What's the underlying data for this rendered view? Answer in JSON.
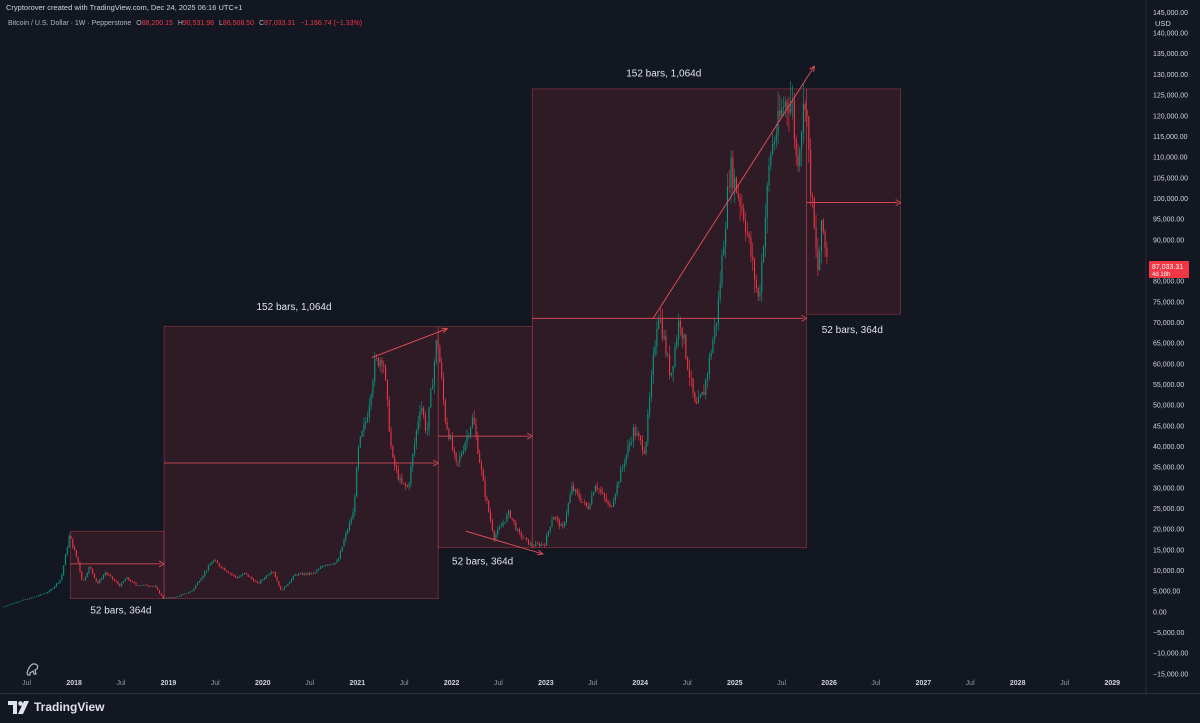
{
  "header": {
    "credit": "Cryptorover created with TradingView.com, Dec 24, 2025 06:16 UTC+1",
    "symbol": "Bitcoin / U.S. Dollar · 1W · Pepperstone",
    "ohlc": {
      "o_label": "O",
      "o_value": "88,200.15",
      "h_label": "H",
      "h_value": "90,531.98",
      "l_label": "L",
      "l_value": "86,508.50",
      "c_label": "C",
      "c_value": "87,033.31",
      "change": "−1,166.74 (−1.33%)"
    }
  },
  "footer": {
    "brand": "TradingView"
  },
  "colors": {
    "up": "#089981",
    "down": "#f23645",
    "annotation": "#e8505b",
    "box_fill": "rgba(242,54,69,0.13)",
    "background": "#131722"
  },
  "price_badge": {
    "price": "87,033.31",
    "countdown": "4d 18h"
  },
  "chart_data": {
    "type": "candlestick",
    "currency_label": "USD",
    "ylim": [
      -16000,
      148000
    ],
    "y_ticks": [
      {
        "v": 145000,
        "label": "145,000.00"
      },
      {
        "v": 140000,
        "label": "140,000.00"
      },
      {
        "v": 135000,
        "label": "135,000.00"
      },
      {
        "v": 130000,
        "label": "130,000.00"
      },
      {
        "v": 125000,
        "label": "125,000.00"
      },
      {
        "v": 120000,
        "label": "120,000.00"
      },
      {
        "v": 115000,
        "label": "115,000.00"
      },
      {
        "v": 110000,
        "label": "110,000.00"
      },
      {
        "v": 105000,
        "label": "105,000.00"
      },
      {
        "v": 100000,
        "label": "100,000.00"
      },
      {
        "v": 95000,
        "label": "95,000.00"
      },
      {
        "v": 90000,
        "label": "90,000.00"
      },
      {
        "v": 80000,
        "label": "80,000.00"
      },
      {
        "v": 75000,
        "label": "75,000.00"
      },
      {
        "v": 70000,
        "label": "70,000.00"
      },
      {
        "v": 65000,
        "label": "65,000.00"
      },
      {
        "v": 60000,
        "label": "60,000.00"
      },
      {
        "v": 55000,
        "label": "55,000.00"
      },
      {
        "v": 50000,
        "label": "50,000.00"
      },
      {
        "v": 45000,
        "label": "45,000.00"
      },
      {
        "v": 40000,
        "label": "40,000.00"
      },
      {
        "v": 35000,
        "label": "35,000.00"
      },
      {
        "v": 30000,
        "label": "30,000.00"
      },
      {
        "v": 25000,
        "label": "25,000.00"
      },
      {
        "v": 20000,
        "label": "20,000.00"
      },
      {
        "v": 15000,
        "label": "15,000.00"
      },
      {
        "v": 10000,
        "label": "10,000.00"
      },
      {
        "v": 5000,
        "label": "5,000.00"
      },
      {
        "v": 0,
        "label": "0.00"
      },
      {
        "v": -5000,
        "label": "−5,000.00"
      },
      {
        "v": -10000,
        "label": "−10,000.00"
      },
      {
        "v": -15000,
        "label": "−15,000.00"
      }
    ],
    "xlim": [
      "2017-03-20",
      "2029-04-30"
    ],
    "x_ticks": [
      {
        "d": "2017-07-01",
        "label": "Jul",
        "year": false
      },
      {
        "d": "2018-01-01",
        "label": "2018",
        "year": true
      },
      {
        "d": "2018-07-01",
        "label": "Jul",
        "year": false
      },
      {
        "d": "2019-01-01",
        "label": "2019",
        "year": true
      },
      {
        "d": "2019-07-01",
        "label": "Jul",
        "year": false
      },
      {
        "d": "2020-01-01",
        "label": "2020",
        "year": true
      },
      {
        "d": "2020-07-01",
        "label": "Jul",
        "year": false
      },
      {
        "d": "2021-01-01",
        "label": "2021",
        "year": true
      },
      {
        "d": "2021-07-01",
        "label": "Jul",
        "year": false
      },
      {
        "d": "2022-01-01",
        "label": "2022",
        "year": true
      },
      {
        "d": "2022-07-01",
        "label": "Jul",
        "year": false
      },
      {
        "d": "2023-01-01",
        "label": "2023",
        "year": true
      },
      {
        "d": "2023-07-01",
        "label": "Jul",
        "year": false
      },
      {
        "d": "2024-01-01",
        "label": "2024",
        "year": true
      },
      {
        "d": "2024-07-01",
        "label": "Jul",
        "year": false
      },
      {
        "d": "2025-01-01",
        "label": "2025",
        "year": true
      },
      {
        "d": "2025-07-01",
        "label": "Jul",
        "year": false
      },
      {
        "d": "2026-01-01",
        "label": "2026",
        "year": true
      },
      {
        "d": "2026-07-01",
        "label": "Jul",
        "year": false
      },
      {
        "d": "2027-01-01",
        "label": "2027",
        "year": true
      },
      {
        "d": "2027-07-01",
        "label": "Jul",
        "year": false
      },
      {
        "d": "2028-01-01",
        "label": "2028",
        "year": true
      },
      {
        "d": "2028-07-01",
        "label": "Jul",
        "year": false
      },
      {
        "d": "2029-01-01",
        "label": "2029",
        "year": true
      }
    ],
    "price_path": [
      [
        "2017-04-01",
        1100
      ],
      [
        "2017-06-01",
        2500
      ],
      [
        "2017-08-01",
        3500
      ],
      [
        "2017-10-01",
        5000
      ],
      [
        "2017-11-15",
        8000
      ],
      [
        "2017-12-17",
        18500
      ],
      [
        "2018-01-20",
        12000
      ],
      [
        "2018-02-06",
        7000
      ],
      [
        "2018-03-05",
        11000
      ],
      [
        "2018-04-05",
        6800
      ],
      [
        "2018-05-05",
        9500
      ],
      [
        "2018-07-01",
        6300
      ],
      [
        "2018-07-25",
        8200
      ],
      [
        "2018-09-01",
        6500
      ],
      [
        "2018-11-10",
        6300
      ],
      [
        "2018-12-15",
        3300
      ],
      [
        "2019-02-01",
        3500
      ],
      [
        "2019-04-05",
        5000
      ],
      [
        "2019-06-26",
        12500
      ],
      [
        "2019-08-05",
        10500
      ],
      [
        "2019-09-25",
        8200
      ],
      [
        "2019-10-26",
        9300
      ],
      [
        "2019-12-17",
        6800
      ],
      [
        "2020-02-12",
        10200
      ],
      [
        "2020-03-15",
        5000
      ],
      [
        "2020-05-10",
        9000
      ],
      [
        "2020-07-20",
        9300
      ],
      [
        "2020-09-01",
        11500
      ],
      [
        "2020-10-20",
        12000
      ],
      [
        "2020-11-20",
        18500
      ],
      [
        "2020-12-20",
        24000
      ],
      [
        "2021-01-10",
        40000
      ],
      [
        "2021-02-10",
        47000
      ],
      [
        "2021-03-13",
        60000
      ],
      [
        "2021-04-14",
        62000
      ],
      [
        "2021-05-19",
        37000
      ],
      [
        "2021-06-22",
        31000
      ],
      [
        "2021-07-20",
        30000
      ],
      [
        "2021-09-07",
        51000
      ],
      [
        "2021-09-30",
        43000
      ],
      [
        "2021-11-10",
        67000
      ],
      [
        "2021-12-10",
        47000
      ],
      [
        "2022-01-24",
        35000
      ],
      [
        "2022-03-28",
        47000
      ],
      [
        "2022-05-12",
        29000
      ],
      [
        "2022-06-18",
        18000
      ],
      [
        "2022-08-15",
        24000
      ],
      [
        "2022-09-20",
        19000
      ],
      [
        "2022-11-09",
        16000
      ],
      [
        "2022-12-31",
        16500
      ],
      [
        "2023-02-01",
        23500
      ],
      [
        "2023-03-10",
        20000
      ],
      [
        "2023-04-15",
        30000
      ],
      [
        "2023-06-15",
        25000
      ],
      [
        "2023-07-15",
        31000
      ],
      [
        "2023-09-11",
        25000
      ],
      [
        "2023-10-25",
        34500
      ],
      [
        "2023-12-10",
        44000
      ],
      [
        "2024-01-23",
        39000
      ],
      [
        "2024-03-14",
        73500
      ],
      [
        "2024-05-01",
        57000
      ],
      [
        "2024-06-05",
        71500
      ],
      [
        "2024-08-05",
        49000
      ],
      [
        "2024-09-06",
        53000
      ],
      [
        "2024-10-29",
        72000
      ],
      [
        "2024-12-17",
        108000
      ],
      [
        "2025-02-10",
        96000
      ],
      [
        "2025-04-07",
        75000
      ],
      [
        "2025-05-22",
        111000
      ],
      [
        "2025-07-14",
        123000
      ],
      [
        "2025-08-14",
        124000
      ],
      [
        "2025-09-01",
        108000
      ],
      [
        "2025-10-06",
        126000
      ],
      [
        "2025-10-20",
        107000
      ],
      [
        "2025-11-21",
        82000
      ],
      [
        "2025-12-09",
        94000
      ],
      [
        "2025-12-22",
        87033
      ]
    ],
    "boxes": [
      {
        "x1": "2017-12-17",
        "x2": "2018-12-15",
        "y1": 19500,
        "y2": 3200,
        "mid": 11600
      },
      {
        "x1": "2018-12-15",
        "x2": "2021-11-10",
        "y1": 69000,
        "y2": 3200,
        "mid": 36000
      },
      {
        "x1": "2021-11-10",
        "x2": "2022-11-09",
        "y1": 69000,
        "y2": 15500,
        "mid": 42500
      },
      {
        "x1": "2022-11-09",
        "x2": "2025-10-06",
        "y1": 126500,
        "y2": 15500,
        "mid": 71000
      },
      {
        "x1": "2025-10-06",
        "x2": "2026-10-05",
        "y1": 126500,
        "y2": 72000,
        "mid": 99000
      }
    ],
    "annotations": [
      {
        "x": "2018-07-01",
        "y": -400,
        "text": "52 bars, 364d"
      },
      {
        "x": "2020-05-01",
        "y": 73000,
        "text": "152 bars, 1,064d"
      },
      {
        "x": "2022-05-01",
        "y": 11500,
        "text": "52 bars, 364d"
      },
      {
        "x": "2024-04-01",
        "y": 129500,
        "text": "152 bars, 1,064d"
      },
      {
        "x": "2026-04-01",
        "y": 67500,
        "text": "52 bars, 364d"
      }
    ],
    "trend_arrows": [
      {
        "x1": "2021-02-25",
        "y1": 61500,
        "x2": "2021-12-15",
        "y2": 68500
      },
      {
        "x1": "2022-02-25",
        "y1": 19500,
        "x2": "2022-12-20",
        "y2": 14000
      },
      {
        "x1": "2024-02-20",
        "y1": 71000,
        "x2": "2025-11-05",
        "y2": 132000
      }
    ]
  }
}
